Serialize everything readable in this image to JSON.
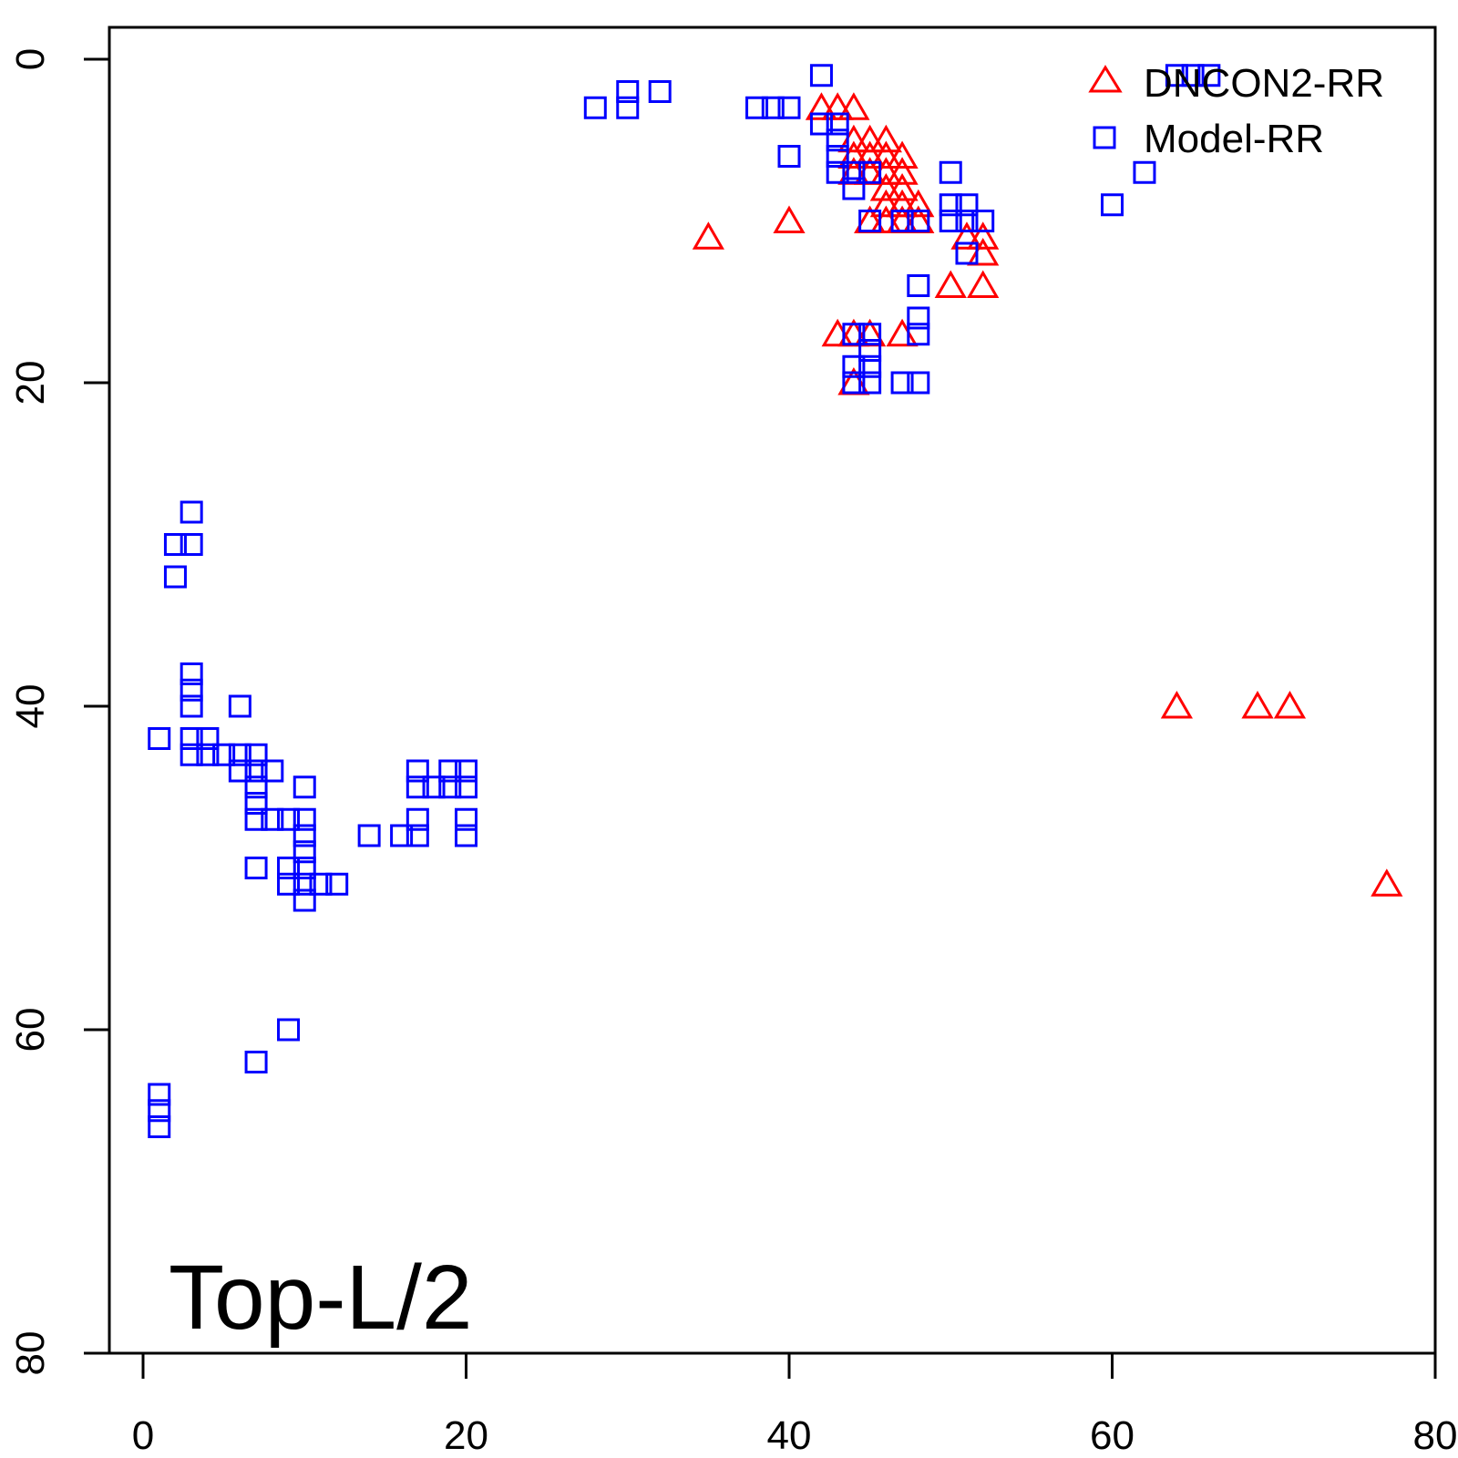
{
  "chart_data": {
    "type": "scatter",
    "title": "",
    "xlabel": "",
    "ylabel": "",
    "xlim": [
      0,
      80
    ],
    "ylim": [
      80,
      0
    ],
    "y_axis_reversed": true,
    "x_ticks": [
      "0",
      "20",
      "40",
      "60",
      "80"
    ],
    "y_ticks": [
      "0",
      "20",
      "40",
      "60",
      "80"
    ],
    "x_tick_values": [
      0,
      20,
      40,
      60,
      80
    ],
    "y_tick_values": [
      0,
      20,
      40,
      60,
      80
    ],
    "legend_position": "top-right",
    "grid": false,
    "annotation": "Top-L/2",
    "series": [
      {
        "name": "DNCON2-RR",
        "marker": "triangle",
        "color": "#ff0000",
        "points": [
          [
            42,
            3
          ],
          [
            43,
            3
          ],
          [
            44,
            3
          ],
          [
            44,
            5
          ],
          [
            45,
            5
          ],
          [
            46,
            5
          ],
          [
            44,
            6
          ],
          [
            45,
            6
          ],
          [
            46,
            6
          ],
          [
            47,
            6
          ],
          [
            44,
            7
          ],
          [
            45,
            7
          ],
          [
            46,
            7
          ],
          [
            47,
            7
          ],
          [
            46,
            8
          ],
          [
            47,
            8
          ],
          [
            46,
            9
          ],
          [
            47,
            9
          ],
          [
            48,
            9
          ],
          [
            47,
            10
          ],
          [
            48,
            10
          ],
          [
            45,
            10
          ],
          [
            46,
            10
          ],
          [
            40,
            10
          ],
          [
            35,
            11
          ],
          [
            51,
            11
          ],
          [
            52,
            11
          ],
          [
            52,
            12
          ],
          [
            50,
            14
          ],
          [
            52,
            14
          ],
          [
            43,
            17
          ],
          [
            44,
            17
          ],
          [
            45,
            17
          ],
          [
            47,
            17
          ],
          [
            44,
            20
          ],
          [
            64,
            40
          ],
          [
            69,
            40
          ],
          [
            71,
            40
          ],
          [
            77,
            51
          ]
        ]
      },
      {
        "name": "Model-RR",
        "marker": "square",
        "color": "#0000ff",
        "points": [
          [
            42,
            1
          ],
          [
            64,
            1
          ],
          [
            65,
            1
          ],
          [
            66,
            1
          ],
          [
            30,
            2
          ],
          [
            32,
            2
          ],
          [
            28,
            3
          ],
          [
            30,
            3
          ],
          [
            38,
            3
          ],
          [
            39,
            3
          ],
          [
            40,
            3
          ],
          [
            42,
            4
          ],
          [
            43,
            4
          ],
          [
            43,
            5
          ],
          [
            43,
            6
          ],
          [
            40,
            6
          ],
          [
            43,
            7
          ],
          [
            44,
            7
          ],
          [
            45,
            7
          ],
          [
            50,
            7
          ],
          [
            62,
            7
          ],
          [
            44,
            8
          ],
          [
            51,
            9
          ],
          [
            50,
            9
          ],
          [
            60,
            9
          ],
          [
            45,
            10
          ],
          [
            47,
            10
          ],
          [
            48,
            10
          ],
          [
            50,
            10
          ],
          [
            51,
            10
          ],
          [
            52,
            10
          ],
          [
            51,
            12
          ],
          [
            48,
            14
          ],
          [
            48,
            16
          ],
          [
            44,
            17
          ],
          [
            45,
            17
          ],
          [
            48,
            17
          ],
          [
            45,
            18
          ],
          [
            44,
            19
          ],
          [
            45,
            19
          ],
          [
            44,
            20
          ],
          [
            45,
            20
          ],
          [
            47,
            20
          ],
          [
            48,
            20
          ],
          [
            3,
            28
          ],
          [
            2,
            30
          ],
          [
            3,
            30
          ],
          [
            2,
            32
          ],
          [
            3,
            38
          ],
          [
            3,
            39
          ],
          [
            3,
            40
          ],
          [
            6,
            40
          ],
          [
            1,
            42
          ],
          [
            3,
            42
          ],
          [
            4,
            42
          ],
          [
            3,
            43
          ],
          [
            4,
            43
          ],
          [
            5,
            43
          ],
          [
            6,
            43
          ],
          [
            7,
            43
          ],
          [
            6,
            44
          ],
          [
            7,
            44
          ],
          [
            8,
            44
          ],
          [
            7,
            45
          ],
          [
            10,
            45
          ],
          [
            17,
            44
          ],
          [
            19,
            44
          ],
          [
            20,
            44
          ],
          [
            17,
            45
          ],
          [
            18,
            45
          ],
          [
            19,
            45
          ],
          [
            20,
            45
          ],
          [
            7,
            46
          ],
          [
            7,
            47
          ],
          [
            8,
            47
          ],
          [
            9,
            47
          ],
          [
            10,
            47
          ],
          [
            17,
            47
          ],
          [
            20,
            47
          ],
          [
            10,
            48
          ],
          [
            14,
            48
          ],
          [
            16,
            48
          ],
          [
            17,
            48
          ],
          [
            20,
            48
          ],
          [
            10,
            49
          ],
          [
            7,
            50
          ],
          [
            9,
            50
          ],
          [
            10,
            50
          ],
          [
            9,
            51
          ],
          [
            10,
            51
          ],
          [
            11,
            51
          ],
          [
            12,
            51
          ],
          [
            10,
            52
          ],
          [
            9,
            60
          ],
          [
            7,
            62
          ],
          [
            1,
            64
          ],
          [
            1,
            65
          ],
          [
            1,
            66
          ]
        ]
      }
    ]
  }
}
